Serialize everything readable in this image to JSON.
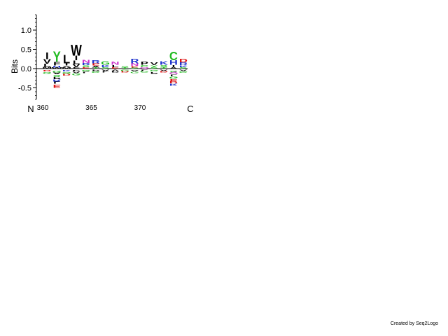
{
  "chart_data": {
    "type": "sequence-logo",
    "ylabel": "Bits",
    "ylim": [
      -0.8,
      1.4
    ],
    "yticks": [
      1.0,
      0.5,
      0.0,
      -0.5
    ],
    "ytick_labels": [
      "1.0",
      "0.5",
      "0.0",
      "-0.5"
    ],
    "xticks": [
      360,
      365,
      370
    ],
    "xtick_labels": [
      "360",
      "365",
      "370"
    ],
    "n_terminus_label": "N",
    "c_terminus_label": "C",
    "positions": [
      {
        "pos": 360,
        "above": [
          [
            "I",
            0.18
          ],
          [
            "V",
            0.12
          ],
          [
            "L",
            0.08
          ],
          [
            "M",
            0.05
          ]
        ],
        "below": [
          [
            "G",
            0.05
          ],
          [
            "D",
            0.04
          ]
        ]
      },
      {
        "pos": 361,
        "above": [
          [
            "Y",
            0.28
          ],
          [
            "F",
            0.1
          ],
          [
            "H",
            0.05
          ],
          [
            "W",
            0.03
          ]
        ],
        "below": [
          [
            "G",
            0.05
          ],
          [
            "A",
            0.05
          ],
          [
            "S",
            0.06
          ],
          [
            "P",
            0.06
          ],
          [
            "E",
            0.08
          ],
          [
            "R",
            0.06
          ],
          [
            "L",
            0.06
          ]
        ]
      },
      {
        "pos": 362,
        "above": [
          [
            "L",
            0.24
          ],
          [
            "I",
            0.06
          ],
          [
            "M",
            0.04
          ],
          [
            "V",
            0.04
          ]
        ],
        "below": [
          [
            "G",
            0.05
          ],
          [
            "D",
            0.05
          ],
          [
            "K",
            0.04
          ]
        ]
      },
      {
        "pos": 363,
        "above": [
          [
            "W",
            0.3
          ],
          [
            "I",
            0.12
          ],
          [
            "L",
            0.1
          ],
          [
            "V",
            0.08
          ],
          [
            "F",
            0.04
          ]
        ],
        "below": [
          [
            "G",
            0.05
          ],
          [
            "P",
            0.04
          ],
          [
            "A",
            0.04
          ]
        ]
      },
      {
        "pos": 364,
        "above": [
          [
            "N",
            0.08
          ],
          [
            "R",
            0.06
          ],
          [
            "S",
            0.05
          ],
          [
            "E",
            0.04
          ]
        ],
        "below": [
          [
            "G",
            0.04
          ],
          [
            "L",
            0.04
          ]
        ]
      },
      {
        "pos": 365,
        "above": [
          [
            "R",
            0.09
          ],
          [
            "E",
            0.06
          ],
          [
            "A",
            0.05
          ],
          [
            "T",
            0.03
          ]
        ],
        "below": [
          [
            "G",
            0.04
          ],
          [
            "P",
            0.03
          ]
        ]
      },
      {
        "pos": 366,
        "above": [
          [
            "G",
            0.1
          ],
          [
            "K",
            0.06
          ],
          [
            "S",
            0.04
          ]
        ],
        "below": [
          [
            "A",
            0.03
          ],
          [
            "L",
            0.03
          ]
        ]
      },
      {
        "pos": 367,
        "above": [
          [
            "N",
            0.08
          ],
          [
            "L",
            0.06
          ],
          [
            "E",
            0.04
          ]
        ],
        "below": [
          [
            "V",
            0.03
          ],
          [
            "P",
            0.03
          ]
        ]
      },
      {
        "pos": 368,
        "above": [
          [
            "S",
            0.04
          ],
          [
            "T",
            0.03
          ]
        ],
        "below": [
          [
            "G",
            0.03
          ],
          [
            "D",
            0.03
          ]
        ]
      },
      {
        "pos": 369,
        "above": [
          [
            "R",
            0.12
          ],
          [
            "N",
            0.07
          ],
          [
            "E",
            0.04
          ],
          [
            "S",
            0.03
          ]
        ],
        "below": [
          [
            "A",
            0.04
          ],
          [
            "G",
            0.04
          ]
        ]
      },
      {
        "pos": 370,
        "above": [
          [
            "P",
            0.09
          ],
          [
            "C",
            0.06
          ],
          [
            "Q",
            0.04
          ]
        ],
        "below": [
          [
            "L",
            0.03
          ],
          [
            "G",
            0.03
          ]
        ]
      },
      {
        "pos": 371,
        "above": [
          [
            "V",
            0.07
          ],
          [
            "Y",
            0.05
          ],
          [
            "S",
            0.04
          ]
        ],
        "below": [
          [
            "G",
            0.04
          ],
          [
            "P",
            0.05
          ]
        ]
      },
      {
        "pos": 372,
        "above": [
          [
            "K",
            0.1
          ],
          [
            "S",
            0.06
          ],
          [
            "T",
            0.04
          ]
        ],
        "below": [
          [
            "A",
            0.03
          ],
          [
            "D",
            0.03
          ]
        ]
      },
      {
        "pos": 373,
        "above": [
          [
            "C",
            0.24
          ],
          [
            "H",
            0.12
          ],
          [
            "I",
            0.06
          ],
          [
            "A",
            0.04
          ]
        ],
        "below": [
          [
            "G",
            0.06
          ],
          [
            "E",
            0.06
          ],
          [
            "S",
            0.05
          ],
          [
            "D",
            0.06
          ],
          [
            "Q",
            0.05
          ],
          [
            "L",
            0.05
          ],
          [
            "K",
            0.06
          ]
        ]
      },
      {
        "pos": 374,
        "above": [
          [
            "D",
            0.1
          ],
          [
            "R",
            0.07
          ],
          [
            "K",
            0.05
          ],
          [
            "S",
            0.04
          ]
        ],
        "below": [
          [
            "G",
            0.04
          ],
          [
            "A",
            0.03
          ]
        ]
      }
    ],
    "letter_colors": {
      "black": "#000000",
      "green": "#22bb22",
      "blue": "#1f33cc",
      "red": "#dd1111",
      "purple": "#cc33cc",
      "yellow": "#e0a020"
    }
  },
  "footer": {
    "credit": "Created by Seq2Logo"
  }
}
